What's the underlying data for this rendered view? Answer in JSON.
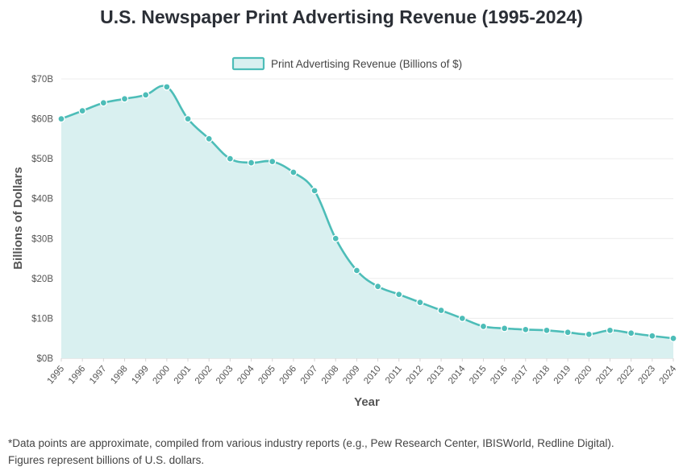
{
  "chart_data": {
    "type": "area",
    "title": "U.S. Newspaper Print Advertising Revenue (1995-2024)",
    "xlabel": "Year",
    "ylabel": "Billions of Dollars",
    "ylim": [
      0,
      70
    ],
    "y_ticks": [
      "$0B",
      "$10B",
      "$20B",
      "$30B",
      "$40B",
      "$50B",
      "$60B",
      "$70B"
    ],
    "y_tick_values": [
      0,
      10,
      20,
      30,
      40,
      50,
      60,
      70
    ],
    "grid": true,
    "legend_position": "top-center",
    "x": [
      "1995",
      "1996",
      "1997",
      "1998",
      "1999",
      "2000",
      "2001",
      "2002",
      "2003",
      "2004",
      "2005",
      "2006",
      "2007",
      "2008",
      "2009",
      "2010",
      "2011",
      "2012",
      "2013",
      "2014",
      "2015",
      "2016",
      "2017",
      "2018",
      "2019",
      "2020",
      "2021",
      "2022",
      "2023",
      "2024"
    ],
    "series": [
      {
        "name": "Print Advertising Revenue (Billions of $)",
        "values": [
          60,
          62,
          64,
          65,
          66,
          68,
          60,
          55,
          50,
          49,
          49.3,
          46.6,
          42,
          30,
          22,
          18,
          16,
          14,
          12,
          10,
          8,
          7.5,
          7.2,
          7,
          6.5,
          6,
          7,
          6.3,
          5.6,
          5
        ],
        "line_color": "#4dbdb8",
        "fill_color": "#d9f0f0"
      }
    ]
  },
  "footnote": {
    "line1": "*Data points are approximate, compiled from various industry reports (e.g., Pew Research Center, IBISWorld, Redline Digital).",
    "line2": "Figures represent billions of U.S. dollars."
  }
}
